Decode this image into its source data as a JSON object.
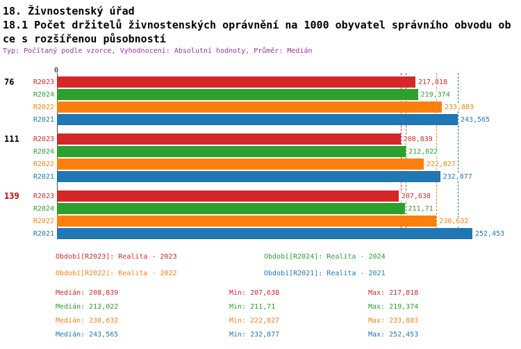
{
  "header": {
    "title": "18. Živnostenský úřad",
    "subtitle_line1": "18.1 Počet držitelů živnostenských oprávnění na 1000 obyvatel správního obvodu ob",
    "subtitle_line2": "ce s rozšířenou působností",
    "meta": "Typ: Počítaný podle vzorce, Vyhodnocení: Absolutní hodnoty, Průměr: Medián"
  },
  "chart_data": {
    "type": "bar",
    "orientation": "horizontal",
    "title": "18.1 Počet držitelů živnostenských oprávnění na 1000 obyvatel správního obvodu obce s rozšířenou působností",
    "origin_label": "0",
    "xlim": [
      0,
      252.453
    ],
    "grid": false,
    "series": [
      {
        "name": "R2023",
        "color": "#d62728"
      },
      {
        "name": "R2024",
        "color": "#2ca02c"
      },
      {
        "name": "R2022",
        "color": "#ff7f0e"
      },
      {
        "name": "R2021",
        "color": "#1f77b4"
      }
    ],
    "groups": [
      {
        "label": "76",
        "label_color": "#000000",
        "values": [
          217.818,
          219.374,
          233.883,
          243.565
        ],
        "value_labels": [
          "217,818",
          "219,374",
          "233,883",
          "243,565"
        ]
      },
      {
        "label": "111",
        "label_color": "#000000",
        "values": [
          208.839,
          212.022,
          222.827,
          232.877
        ],
        "value_labels": [
          "208,839",
          "212,022",
          "222,827",
          "232,877"
        ]
      },
      {
        "label": "139",
        "label_color": "#cc0000",
        "values": [
          207.638,
          211.71,
          230.632,
          252.453
        ],
        "value_labels": [
          "207,638",
          "211,71",
          "230,632",
          "252,453"
        ]
      }
    ],
    "median_lines": [
      {
        "series": "R2023",
        "value": 208.839,
        "color": "#d62728"
      },
      {
        "series": "R2024",
        "value": 212.022,
        "color": "#2ca02c"
      },
      {
        "series": "R2022",
        "value": 230.632,
        "color": "#ff7f0e"
      },
      {
        "series": "R2021",
        "value": 243.565,
        "color": "#1f77b4"
      }
    ]
  },
  "legend": [
    {
      "label": "Období[R2023]: Realita - 2023",
      "color": "#d62728"
    },
    {
      "label": "Období[R2024]: Realita - 2024",
      "color": "#2ca02c"
    },
    {
      "label": "Období[R2022]: Realita - 2022",
      "color": "#ff7f0e"
    },
    {
      "label": "Období[R2021]: Realita - 2021",
      "color": "#1f77b4"
    }
  ],
  "stats": [
    {
      "color": "#d62728",
      "median": "Medián: 208,839",
      "min": "Min: 207,638",
      "max": "Max: 217,818"
    },
    {
      "color": "#2ca02c",
      "median": "Medián: 212,022",
      "min": "Min: 211,71",
      "max": "Max: 219,374"
    },
    {
      "color": "#ff7f0e",
      "median": "Medián: 230,632",
      "min": "Min: 222,827",
      "max": "Max: 233,883"
    },
    {
      "color": "#1f77b4",
      "median": "Medián: 243,565",
      "min": "Min: 232,877",
      "max": "Max: 252,453"
    }
  ]
}
